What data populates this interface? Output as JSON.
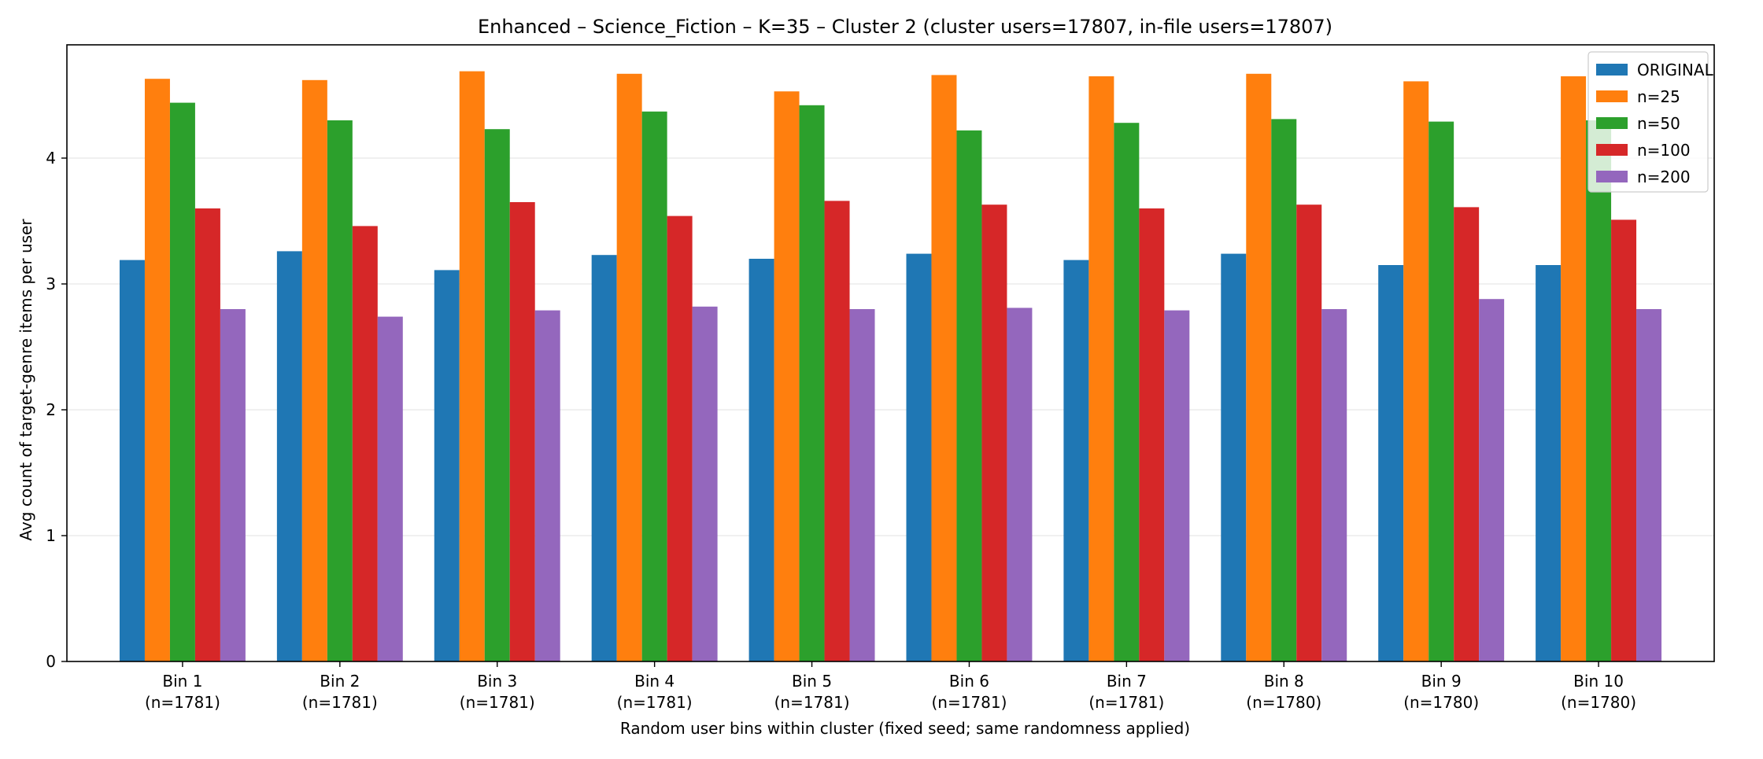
{
  "chart_data": {
    "type": "bar",
    "title": "Enhanced – Science_Fiction – K=35 – Cluster 2 (cluster users=17807, in-file users=17807)",
    "xlabel": "Random user bins within cluster (fixed seed; same randomness applied)",
    "ylabel": "Avg count of target-genre items per user",
    "ylim": [
      0,
      4.9
    ],
    "yticks": [
      0,
      1,
      2,
      3,
      4
    ],
    "grid": "horizontal",
    "legend_position": "top-right",
    "categories": [
      {
        "name": "Bin 1",
        "count": "(n=1781)"
      },
      {
        "name": "Bin 2",
        "count": "(n=1781)"
      },
      {
        "name": "Bin 3",
        "count": "(n=1781)"
      },
      {
        "name": "Bin 4",
        "count": "(n=1781)"
      },
      {
        "name": "Bin 5",
        "count": "(n=1781)"
      },
      {
        "name": "Bin 6",
        "count": "(n=1781)"
      },
      {
        "name": "Bin 7",
        "count": "(n=1781)"
      },
      {
        "name": "Bin 8",
        "count": "(n=1780)"
      },
      {
        "name": "Bin 9",
        "count": "(n=1780)"
      },
      {
        "name": "Bin 10",
        "count": "(n=1780)"
      }
    ],
    "series": [
      {
        "name": "ORIGINAL",
        "color": "#1f77b4",
        "values": [
          3.19,
          3.26,
          3.11,
          3.23,
          3.2,
          3.24,
          3.19,
          3.24,
          3.15,
          3.15
        ]
      },
      {
        "name": "n=25",
        "color": "#ff7f0e",
        "values": [
          4.63,
          4.62,
          4.69,
          4.67,
          4.53,
          4.66,
          4.65,
          4.67,
          4.61,
          4.65
        ]
      },
      {
        "name": "n=50",
        "color": "#2ca02c",
        "values": [
          4.44,
          4.3,
          4.23,
          4.37,
          4.42,
          4.22,
          4.28,
          4.31,
          4.29,
          4.3
        ]
      },
      {
        "name": "n=100",
        "color": "#d62728",
        "values": [
          3.6,
          3.46,
          3.65,
          3.54,
          3.66,
          3.63,
          3.6,
          3.63,
          3.61,
          3.51
        ]
      },
      {
        "name": "n=200",
        "color": "#9467bd",
        "values": [
          2.8,
          2.74,
          2.79,
          2.82,
          2.8,
          2.81,
          2.79,
          2.8,
          2.88,
          2.8
        ]
      }
    ]
  }
}
